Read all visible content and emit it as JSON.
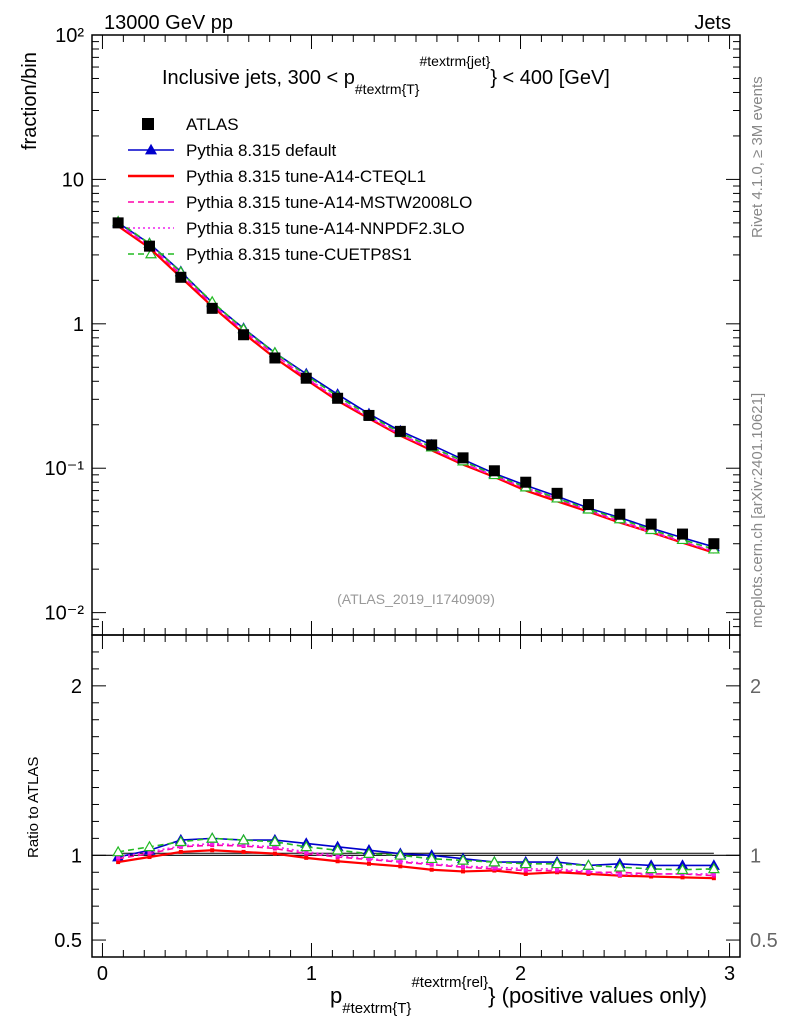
{
  "header": {
    "left": "13000 GeV pp",
    "right": "Jets"
  },
  "side_labels": {
    "rivet": "Rivet 4.1.0, ≥ 3M events",
    "mcplots": "mcplots.cern.ch [arXiv:2401.10621]"
  },
  "chart_data": {
    "type": "line",
    "title": "Inclusive jets, 300 < p",
    "title_sub": "#textrm{T}",
    "title_sup": "#textrm{jet}",
    "title_tail": "} < 400 [GeV]",
    "analysis_id": "(ATLAS_2019_I1740909)",
    "ylabel": "fraction/bin",
    "ratio_ylabel": "Ratio to ATLAS",
    "xlabel_main": "p",
    "xlabel_sub": "#textrm{T}",
    "xlabel_sup": "#textrm{rel}",
    "xlabel_tail": "} (positive values only)",
    "xlim": [
      -0.05,
      3.05
    ],
    "ylim": [
      0.007,
      100
    ],
    "ratio_ylim": [
      0.4,
      2.3
    ],
    "x_ticks": [
      "0",
      "1",
      "2",
      "3"
    ],
    "y_ticks": [
      "10⁻²",
      "10⁻¹",
      "1",
      "10",
      "10²"
    ],
    "ratio_ticks": [
      "0.5",
      "1",
      "2"
    ],
    "x": [
      0.075,
      0.225,
      0.375,
      0.525,
      0.675,
      0.825,
      0.975,
      1.125,
      1.275,
      1.425,
      1.575,
      1.725,
      1.875,
      2.025,
      2.175,
      2.325,
      2.475,
      2.625,
      2.775,
      2.925
    ],
    "data": {
      "name": "ATLAS",
      "values": [
        5.0,
        3.45,
        2.1,
        1.28,
        0.84,
        0.58,
        0.42,
        0.305,
        0.232,
        0.18,
        0.145,
        0.118,
        0.096,
        0.08,
        0.067,
        0.056,
        0.048,
        0.041,
        0.035,
        0.03
      ]
    },
    "series": [
      {
        "name": "Pythia 8.315 default",
        "color": "#0000cc",
        "dash": "solid",
        "marker": "triangle-filled",
        "values": [
          5.0,
          3.6,
          2.3,
          1.4,
          0.93,
          0.63,
          0.45,
          0.325,
          0.238,
          0.181,
          0.145,
          0.115,
          0.092,
          0.076,
          0.064,
          0.053,
          0.0455,
          0.0385,
          0.033,
          0.0285
        ]
      },
      {
        "name": "Pythia 8.315 tune-A14-CTEQL1",
        "color": "#ff0000",
        "dash": "solid",
        "marker": "none",
        "values": [
          4.75,
          3.35,
          2.1,
          1.32,
          0.86,
          0.58,
          0.41,
          0.293,
          0.221,
          0.168,
          0.133,
          0.106,
          0.087,
          0.07,
          0.059,
          0.05,
          0.042,
          0.036,
          0.0305,
          0.026
        ]
      },
      {
        "name": "Pythia 8.315 tune-A14-MSTW2008LO",
        "color": "#ff00aa",
        "dash": "dashed",
        "marker": "none",
        "values": [
          4.85,
          3.45,
          2.2,
          1.36,
          0.89,
          0.61,
          0.42,
          0.3,
          0.225,
          0.17,
          0.136,
          0.108,
          0.088,
          0.072,
          0.061,
          0.051,
          0.043,
          0.0365,
          0.031,
          0.0265
        ]
      },
      {
        "name": "Pythia 8.315 tune-A14-NNPDF2.3LO",
        "color": "#ee22ee",
        "dash": "dotted",
        "marker": "none",
        "values": [
          4.9,
          3.5,
          2.21,
          1.37,
          0.9,
          0.61,
          0.425,
          0.302,
          0.226,
          0.172,
          0.137,
          0.109,
          0.089,
          0.073,
          0.062,
          0.051,
          0.0425,
          0.036,
          0.031,
          0.0265
        ]
      },
      {
        "name": "Pythia 8.315 tune-CUETP8S1",
        "color": "#22bb22",
        "dash": "dashed",
        "marker": "triangle-open",
        "values": [
          5.1,
          3.6,
          2.28,
          1.42,
          0.92,
          0.63,
          0.44,
          0.315,
          0.232,
          0.176,
          0.14,
          0.112,
          0.09,
          0.074,
          0.062,
          0.052,
          0.0445,
          0.0375,
          0.032,
          0.0275
        ]
      }
    ],
    "ratios": [
      [
        0.99,
        1.03,
        1.09,
        1.1,
        1.09,
        1.09,
        1.07,
        1.05,
        1.03,
        1.01,
        1.0,
        0.98,
        0.96,
        0.96,
        0.96,
        0.94,
        0.95,
        0.94,
        0.94,
        0.94
      ],
      [
        0.96,
        0.99,
        1.02,
        1.03,
        1.02,
        1.01,
        0.985,
        0.965,
        0.95,
        0.935,
        0.915,
        0.905,
        0.91,
        0.89,
        0.9,
        0.89,
        0.88,
        0.875,
        0.87,
        0.865
      ],
      [
        0.98,
        1.01,
        1.05,
        1.06,
        1.055,
        1.04,
        1.01,
        0.99,
        0.975,
        0.96,
        0.945,
        0.93,
        0.92,
        0.91,
        0.91,
        0.9,
        0.9,
        0.89,
        0.89,
        0.88
      ],
      [
        0.99,
        1.02,
        1.055,
        1.07,
        1.06,
        1.05,
        1.02,
        1.0,
        0.98,
        0.965,
        0.95,
        0.935,
        0.93,
        0.92,
        0.92,
        0.905,
        0.885,
        0.89,
        0.89,
        0.89
      ],
      [
        1.02,
        1.05,
        1.08,
        1.1,
        1.09,
        1.08,
        1.05,
        1.03,
        1.01,
        1.0,
        0.98,
        0.97,
        0.96,
        0.95,
        0.95,
        0.94,
        0.93,
        0.92,
        0.915,
        0.92
      ]
    ]
  }
}
